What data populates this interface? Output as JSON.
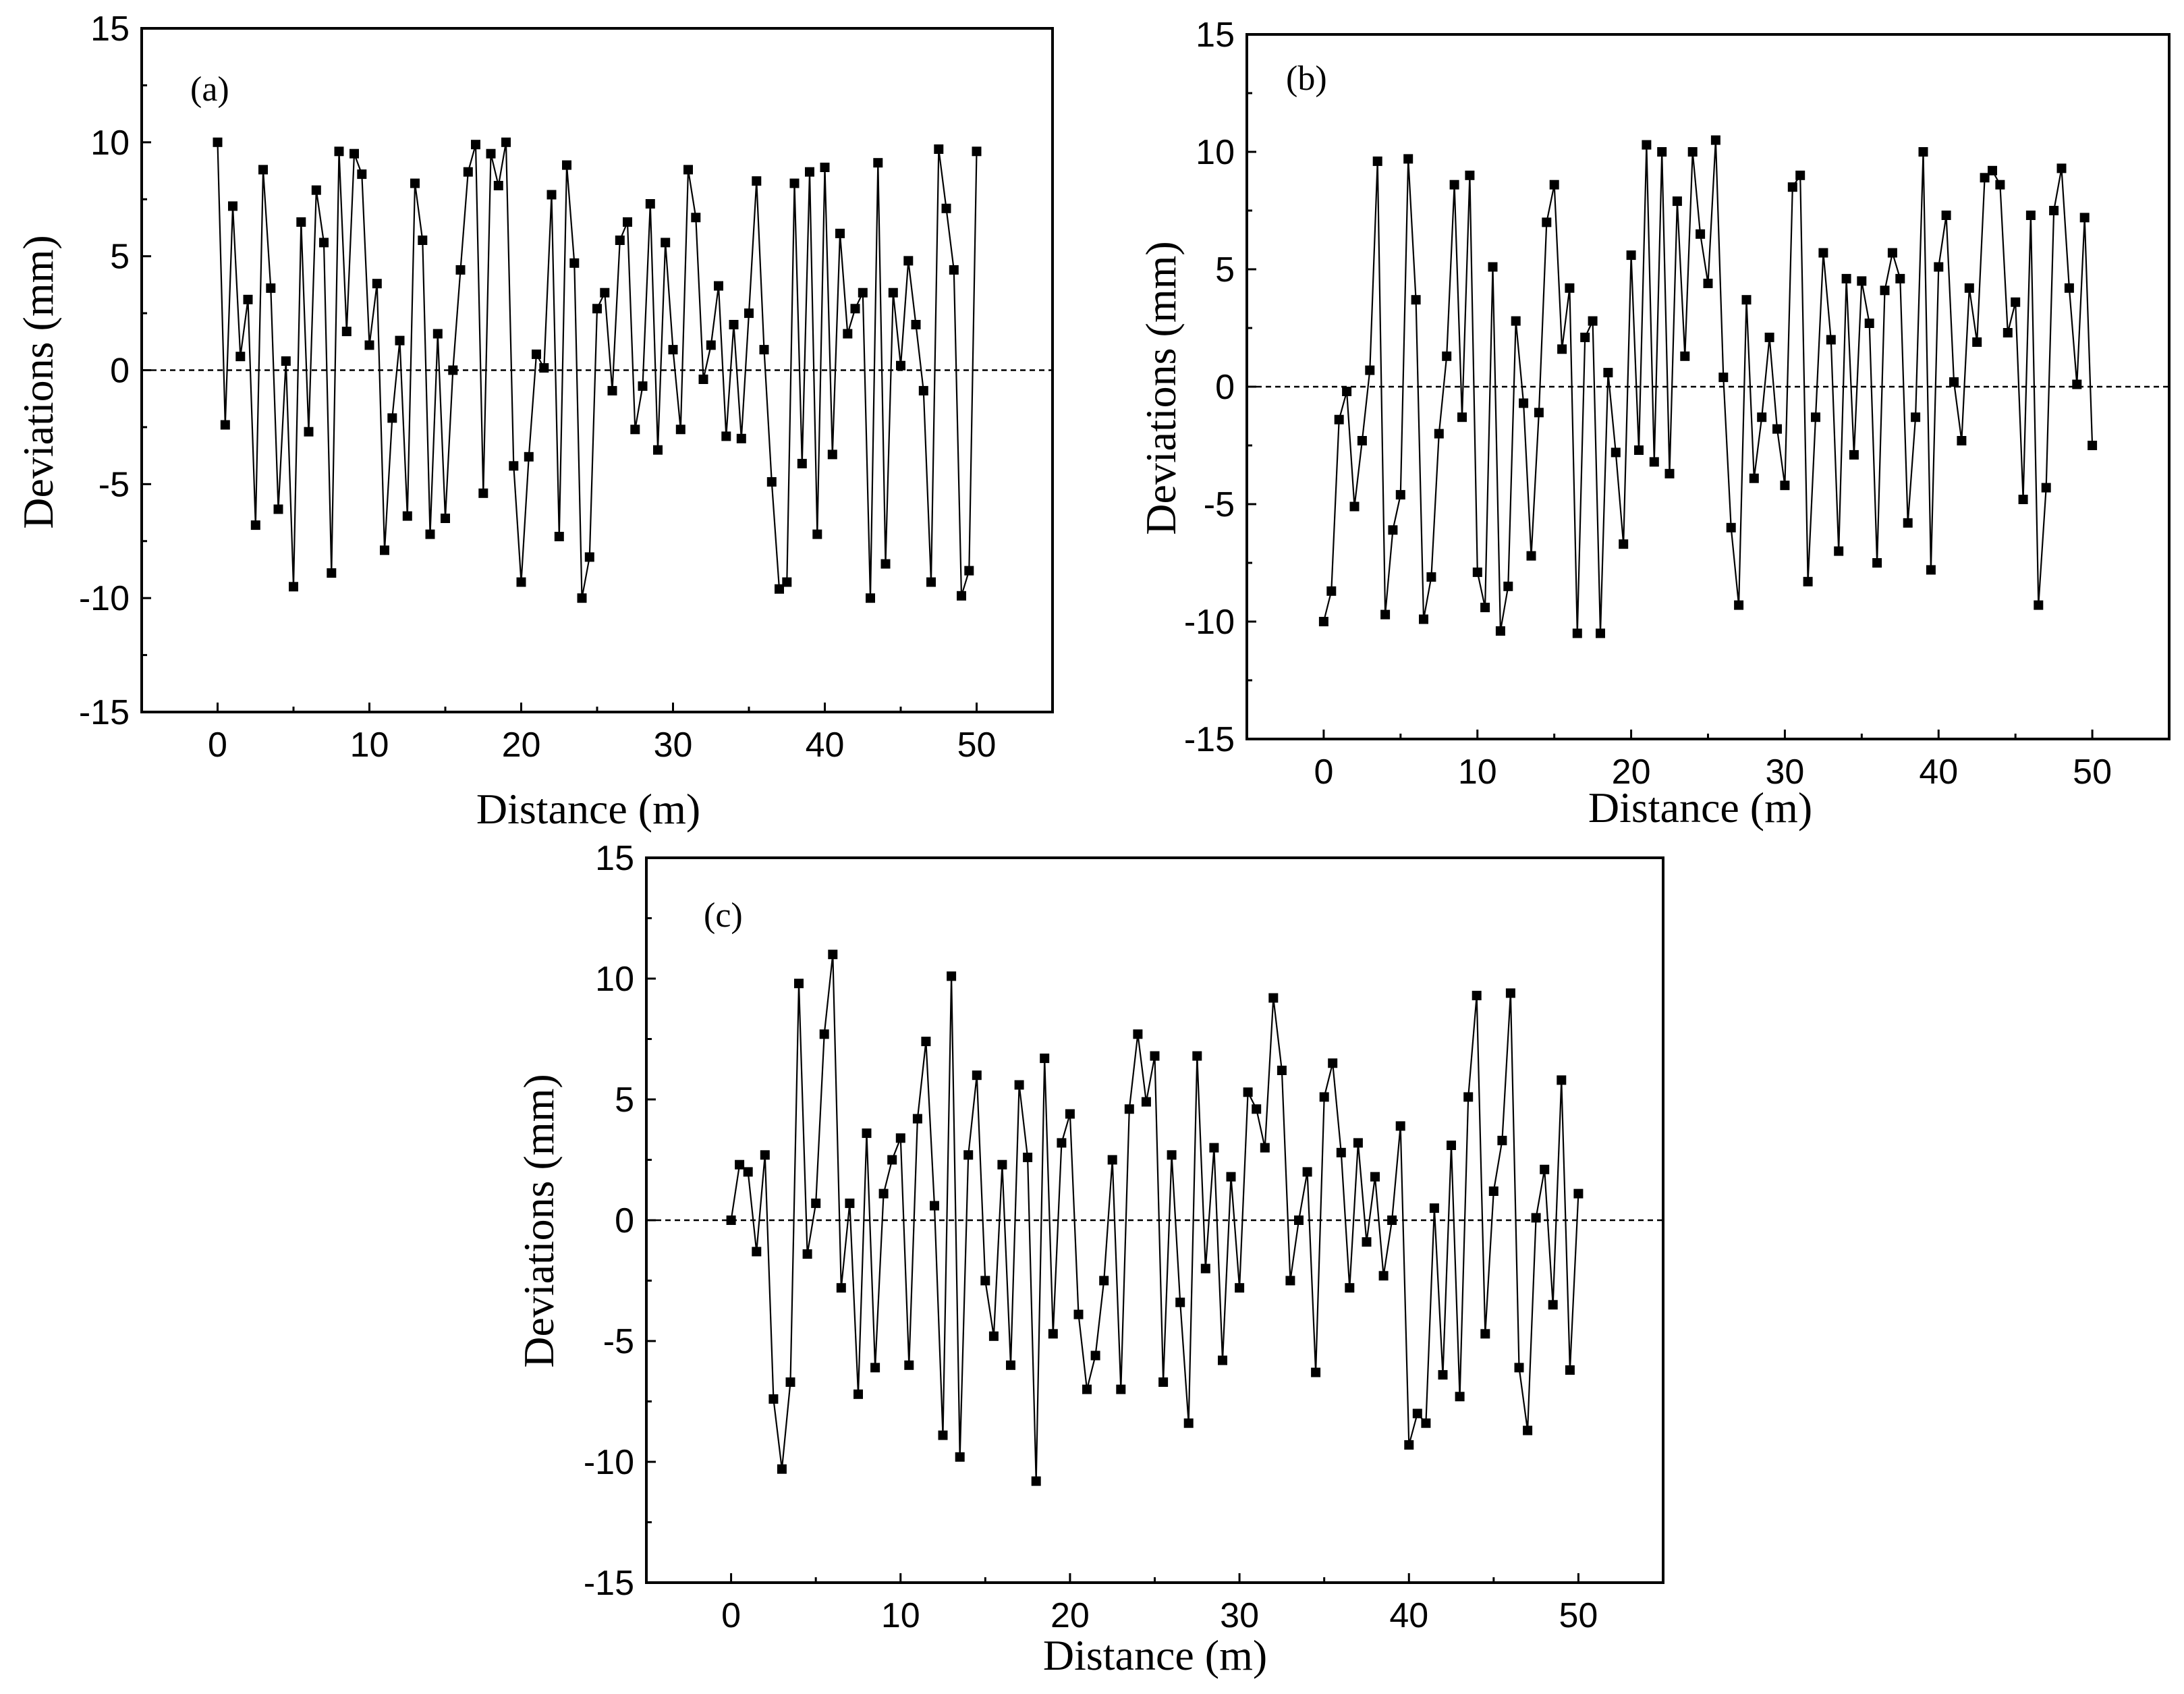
{
  "chart_data": [
    {
      "id": "a",
      "type": "line",
      "panel_label": "(a)",
      "xlabel": "Distance (m)",
      "ylabel": "Deviations (mm)",
      "xlim": [
        -5,
        55
      ],
      "ylim": [
        -15,
        15
      ],
      "xticks": [
        0,
        10,
        20,
        30,
        40,
        50
      ],
      "yticks": [
        -15,
        -10,
        -5,
        0,
        5,
        10,
        15
      ],
      "reference_line": 0,
      "series": [
        {
          "name": "deviation",
          "x": [
            0,
            0.5,
            1,
            1.5,
            2,
            2.5,
            3,
            3.5,
            4,
            4.5,
            5,
            5.5,
            6,
            6.5,
            7,
            7.5,
            8,
            8.5,
            9,
            9.5,
            10,
            10.5,
            11,
            11.5,
            12,
            12.5,
            13,
            13.5,
            14,
            14.5,
            15,
            15.5,
            16,
            16.5,
            17,
            17.5,
            18,
            18.5,
            19,
            19.5,
            20,
            20.5,
            21,
            21.5,
            22,
            22.5,
            23,
            23.5,
            24,
            24.5,
            25,
            25.5,
            26,
            26.5,
            27,
            27.5,
            28,
            28.5,
            29,
            29.5,
            30,
            30.5,
            31,
            31.5,
            32,
            32.5,
            33,
            33.5,
            34,
            34.5,
            35,
            35.5,
            36,
            36.5,
            37,
            37.5,
            38,
            38.5,
            39,
            39.5,
            40,
            40.5,
            41,
            41.5,
            42,
            42.5,
            43,
            43.5,
            44,
            44.5,
            45,
            45.5,
            46,
            46.5,
            47,
            47.5,
            48,
            48.5,
            49,
            49.5,
            50
          ],
          "values": [
            10,
            -2.4,
            7.2,
            0.6,
            3.1,
            -6.8,
            8.8,
            3.6,
            -6.1,
            0.4,
            -9.5,
            6.5,
            -2.7,
            7.9,
            5.6,
            -8.9,
            9.6,
            1.7,
            9.5,
            8.6,
            1.1,
            3.8,
            -7.9,
            -2.1,
            1.3,
            -6.4,
            8.2,
            5.7,
            -7.2,
            1.6,
            -6.5,
            0,
            4.4,
            8.7,
            9.9,
            -5.4,
            9.5,
            8.1,
            10,
            -4.2,
            -9.3,
            -3.8,
            0.7,
            0.1,
            7.7,
            -7.3,
            9,
            4.7,
            -10,
            -8.2,
            2.7,
            3.4,
            -0.9,
            5.7,
            6.5,
            -2.6,
            -0.7,
            7.3,
            -3.5,
            5.6,
            0.9,
            -2.6,
            8.8,
            6.7,
            -0.4,
            1.1,
            3.7,
            -2.9,
            2,
            -3,
            2.5,
            8.3,
            0.9,
            -4.9,
            -9.6,
            -9.3,
            8.2,
            -4.1,
            8.7,
            -7.2,
            8.9,
            -3.7,
            6,
            1.6,
            2.7,
            3.4,
            -10,
            9.1,
            -8.5,
            3.4,
            0.2,
            4.8,
            2,
            -0.9,
            -9.3,
            9.7,
            7.1,
            4.4,
            -9.9,
            -8.8,
            9.6
          ]
        }
      ]
    },
    {
      "id": "b",
      "type": "line",
      "panel_label": "(b)",
      "xlabel": "Distance (m)",
      "ylabel": "Deviations (mm)",
      "xlim": [
        -5,
        55
      ],
      "ylim": [
        -15,
        15
      ],
      "xticks": [
        0,
        10,
        20,
        30,
        40,
        50
      ],
      "yticks": [
        -15,
        -10,
        -5,
        0,
        5,
        10,
        15
      ],
      "reference_line": 0,
      "series": [
        {
          "name": "deviation",
          "x": [
            0,
            0.5,
            1,
            1.5,
            2,
            2.5,
            3,
            3.5,
            4,
            4.5,
            5,
            5.5,
            6,
            6.5,
            7,
            7.5,
            8,
            8.5,
            9,
            9.5,
            10,
            10.5,
            11,
            11.5,
            12,
            12.5,
            13,
            13.5,
            14,
            14.5,
            15,
            15.5,
            16,
            16.5,
            17,
            17.5,
            18,
            18.5,
            19,
            19.5,
            20,
            20.5,
            21,
            21.5,
            22,
            22.5,
            23,
            23.5,
            24,
            24.5,
            25,
            25.5,
            26,
            26.5,
            27,
            27.5,
            28,
            28.5,
            29,
            29.5,
            30,
            30.5,
            31,
            31.5,
            32,
            32.5,
            33,
            33.5,
            34,
            34.5,
            35,
            35.5,
            36,
            36.5,
            37,
            37.5,
            38,
            38.5,
            39,
            39.5,
            40,
            40.5,
            41,
            41.5,
            42,
            42.5,
            43,
            43.5,
            44,
            44.5,
            45,
            45.5,
            46,
            46.5,
            47,
            47.5,
            48,
            48.5,
            49,
            49.5,
            50
          ],
          "values": [
            -10,
            -8.7,
            -1.4,
            -0.2,
            -5.1,
            -2.3,
            0.7,
            9.6,
            -9.7,
            -6.1,
            -4.6,
            9.7,
            3.7,
            -9.9,
            -8.1,
            -2,
            1.3,
            8.6,
            -1.3,
            9,
            -7.9,
            -9.4,
            5.1,
            -10.4,
            -8.5,
            2.8,
            -0.7,
            -7.2,
            -1.1,
            7,
            8.6,
            1.6,
            4.2,
            -10.5,
            2.1,
            2.8,
            -10.5,
            0.6,
            -2.8,
            -6.7,
            5.6,
            -2.7,
            10.3,
            -3.2,
            10,
            -3.7,
            7.9,
            1.3,
            10,
            6.5,
            4.4,
            10.5,
            0.4,
            -6,
            -9.3,
            3.7,
            -3.9,
            -1.3,
            2.1,
            -1.8,
            -4.2,
            8.5,
            9,
            -8.3,
            -1.3,
            5.7,
            2,
            -7,
            4.6,
            -2.9,
            4.5,
            2.7,
            -7.5,
            4.1,
            5.7,
            4.6,
            -5.8,
            -1.3,
            10,
            -7.8,
            5.1,
            7.3,
            0.2,
            -2.3,
            4.2,
            1.9,
            8.9,
            9.2,
            8.6,
            2.3,
            3.6,
            -4.8,
            7.3,
            -9.3,
            -4.3,
            7.5,
            9.3,
            4.2,
            0.1,
            7.2,
            -2.5
          ]
        }
      ]
    },
    {
      "id": "c",
      "type": "line",
      "panel_label": "(c)",
      "xlabel": "Distance (m)",
      "ylabel": "Deviations (mm)",
      "xlim": [
        -5,
        55
      ],
      "ylim": [
        -15,
        15
      ],
      "xticks": [
        0,
        10,
        20,
        30,
        40,
        50
      ],
      "yticks": [
        -15,
        -10,
        -5,
        0,
        5,
        10,
        15
      ],
      "reference_line": 0,
      "series": [
        {
          "name": "deviation",
          "x": [
            0,
            0.5,
            1,
            1.5,
            2,
            2.5,
            3,
            3.5,
            4,
            4.5,
            5,
            5.5,
            6,
            6.5,
            7,
            7.5,
            8,
            8.5,
            9,
            9.5,
            10,
            10.5,
            11,
            11.5,
            12,
            12.5,
            13,
            13.5,
            14,
            14.5,
            15,
            15.5,
            16,
            16.5,
            17,
            17.5,
            18,
            18.5,
            19,
            19.5,
            20,
            20.5,
            21,
            21.5,
            22,
            22.5,
            23,
            23.5,
            24,
            24.5,
            25,
            25.5,
            26,
            26.5,
            27,
            27.5,
            28,
            28.5,
            29,
            29.5,
            30,
            30.5,
            31,
            31.5,
            32,
            32.5,
            33,
            33.5,
            34,
            34.5,
            35,
            35.5,
            36,
            36.5,
            37,
            37.5,
            38,
            38.5,
            39,
            39.5,
            40,
            40.5,
            41,
            41.5,
            42,
            42.5,
            43,
            43.5,
            44,
            44.5,
            45,
            45.5,
            46,
            46.5,
            47,
            47.5,
            48,
            48.5,
            49,
            49.5,
            50
          ],
          "values": [
            0,
            2.3,
            2,
            -1.3,
            2.7,
            -7.4,
            -10.3,
            -6.7,
            9.8,
            -1.4,
            0.7,
            7.7,
            11,
            -2.8,
            0.7,
            -7.2,
            3.6,
            -6.1,
            1.1,
            2.5,
            3.4,
            -6,
            4.2,
            7.4,
            0.6,
            -8.9,
            10.1,
            -9.8,
            2.7,
            6,
            -2.5,
            -4.8,
            2.3,
            -6,
            5.6,
            2.6,
            -10.8,
            6.7,
            -4.7,
            3.2,
            4.4,
            -3.9,
            -7,
            -5.6,
            -2.5,
            2.5,
            -7,
            4.6,
            7.7,
            4.9,
            6.8,
            -6.7,
            2.7,
            -3.4,
            -8.4,
            6.8,
            -2,
            3,
            -5.8,
            1.8,
            -2.8,
            5.3,
            4.6,
            3,
            9.2,
            6.2,
            -2.5,
            0,
            2,
            -6.3,
            5.1,
            6.5,
            2.8,
            -2.8,
            3.2,
            -0.9,
            1.8,
            -2.3,
            0,
            3.9,
            -9.3,
            -8,
            -8.4,
            0.5,
            -6.4,
            3.1,
            -7.3,
            5.1,
            9.3,
            -4.7,
            1.2,
            3.3,
            9.4,
            -6.1,
            -8.7,
            0.1,
            2.1,
            -3.5,
            5.8,
            -6.2,
            1.1
          ]
        }
      ]
    }
  ]
}
